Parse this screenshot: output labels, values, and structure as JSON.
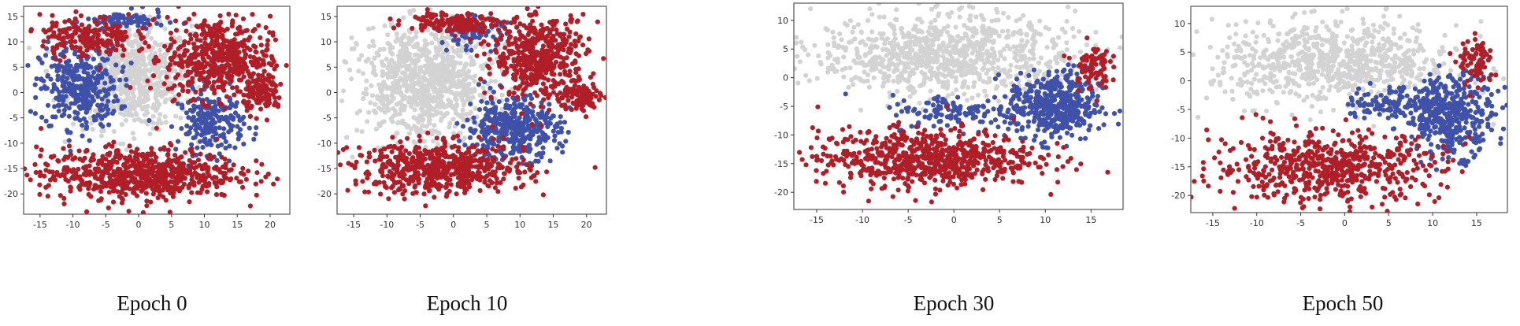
{
  "figure": {
    "colors": {
      "gray": "#d3d3d3",
      "blue": "#3f51a8",
      "red": "#b01e28"
    },
    "captions": [
      "Epoch 0",
      "Epoch 10",
      "Epoch 30",
      "Epoch 50"
    ]
  },
  "chart_data": [
    {
      "type": "scatter",
      "title": "Epoch 0",
      "xlim": [
        -17.5,
        23
      ],
      "ylim": [
        -24,
        17
      ],
      "xticks": [
        -15,
        -10,
        -5,
        0,
        5,
        10,
        15,
        20
      ],
      "yticks": [
        15,
        10,
        5,
        0,
        -5,
        -10,
        -15,
        -20
      ],
      "grid": false,
      "series": [
        {
          "color": "gray",
          "clusters": [
            {
              "cx": -1,
              "cy": 3,
              "rx": 9,
              "ry": 10,
              "n": 700
            }
          ]
        },
        {
          "color": "blue",
          "clusters": [
            {
              "cx": -9,
              "cy": 1,
              "rx": 6,
              "ry": 8,
              "n": 350
            },
            {
              "cx": 11,
              "cy": -6,
              "rx": 5,
              "ry": 6,
              "n": 220
            },
            {
              "cx": -2,
              "cy": 14,
              "rx": 6,
              "ry": 2,
              "n": 80
            }
          ]
        },
        {
          "color": "red",
          "clusters": [
            {
              "cx": 12,
              "cy": 7,
              "rx": 8,
              "ry": 8,
              "n": 500
            },
            {
              "cx": 0,
              "cy": -16,
              "rx": 15,
              "ry": 5,
              "n": 700
            },
            {
              "cx": -8,
              "cy": 11,
              "rx": 7,
              "ry": 4,
              "n": 200
            },
            {
              "cx": 19,
              "cy": 0,
              "rx": 3,
              "ry": 4,
              "n": 120
            }
          ]
        }
      ]
    },
    {
      "type": "scatter",
      "title": "Epoch 10",
      "xlim": [
        -17.5,
        23
      ],
      "ylim": [
        -24,
        17
      ],
      "xticks": [
        -15,
        -10,
        -5,
        0,
        5,
        10,
        15,
        20
      ],
      "yticks": [
        15,
        10,
        5,
        0,
        -5,
        -10,
        -15,
        -20
      ],
      "grid": false,
      "series": [
        {
          "color": "gray",
          "clusters": [
            {
              "cx": -4,
              "cy": 2,
              "rx": 10,
              "ry": 11,
              "n": 900
            }
          ]
        },
        {
          "color": "blue",
          "clusters": [
            {
              "cx": 9,
              "cy": -7,
              "rx": 7,
              "ry": 6,
              "n": 400
            },
            {
              "cx": 3,
              "cy": 12,
              "rx": 5,
              "ry": 3,
              "n": 80
            }
          ]
        },
        {
          "color": "red",
          "clusters": [
            {
              "cx": 13,
              "cy": 7,
              "rx": 7,
              "ry": 8,
              "n": 500
            },
            {
              "cx": -2,
              "cy": -15,
              "rx": 13,
              "ry": 5,
              "n": 600
            },
            {
              "cx": 0,
              "cy": 14,
              "rx": 7,
              "ry": 2,
              "n": 150
            },
            {
              "cx": 19,
              "cy": -1,
              "rx": 3,
              "ry": 3,
              "n": 100
            }
          ]
        }
      ]
    },
    {
      "type": "scatter",
      "title": "Epoch 30",
      "xlim": [
        -17.5,
        18.5
      ],
      "ylim": [
        -23,
        13
      ],
      "xticks": [
        -15,
        -10,
        -5,
        0,
        5,
        10,
        15
      ],
      "yticks": [
        10,
        5,
        0,
        -5,
        -10,
        -15,
        -20
      ],
      "grid": false,
      "series": [
        {
          "color": "gray",
          "clusters": [
            {
              "cx": -1,
              "cy": 4,
              "rx": 14,
              "ry": 7,
              "n": 900
            }
          ]
        },
        {
          "color": "blue",
          "clusters": [
            {
              "cx": 11,
              "cy": -5,
              "rx": 5,
              "ry": 6,
              "n": 450
            },
            {
              "cx": 0,
              "cy": -6,
              "rx": 7,
              "ry": 3,
              "n": 120
            }
          ]
        },
        {
          "color": "red",
          "clusters": [
            {
              "cx": -3,
              "cy": -14,
              "rx": 12,
              "ry": 5,
              "n": 700
            },
            {
              "cx": 15,
              "cy": 2,
              "rx": 2,
              "ry": 4,
              "n": 80
            }
          ]
        }
      ]
    },
    {
      "type": "scatter",
      "title": "Epoch 50",
      "xlim": [
        -17.5,
        18.5
      ],
      "ylim": [
        -23,
        13
      ],
      "xticks": [
        -15,
        -10,
        -5,
        0,
        5,
        10,
        15
      ],
      "yticks": [
        10,
        5,
        0,
        -5,
        -10,
        -15,
        -20
      ],
      "grid": false,
      "series": [
        {
          "color": "gray",
          "clusters": [
            {
              "cx": -1,
              "cy": 3,
              "rx": 14,
              "ry": 7,
              "n": 800
            }
          ]
        },
        {
          "color": "blue",
          "clusters": [
            {
              "cx": 12,
              "cy": -6,
              "rx": 5,
              "ry": 7,
              "n": 400
            },
            {
              "cx": 5,
              "cy": -4,
              "rx": 5,
              "ry": 3,
              "n": 100
            }
          ]
        },
        {
          "color": "red",
          "clusters": [
            {
              "cx": -2,
              "cy": -15,
              "rx": 13,
              "ry": 6,
              "n": 600
            },
            {
              "cx": 15,
              "cy": 3,
              "rx": 2,
              "ry": 4,
              "n": 80
            }
          ]
        }
      ]
    }
  ]
}
